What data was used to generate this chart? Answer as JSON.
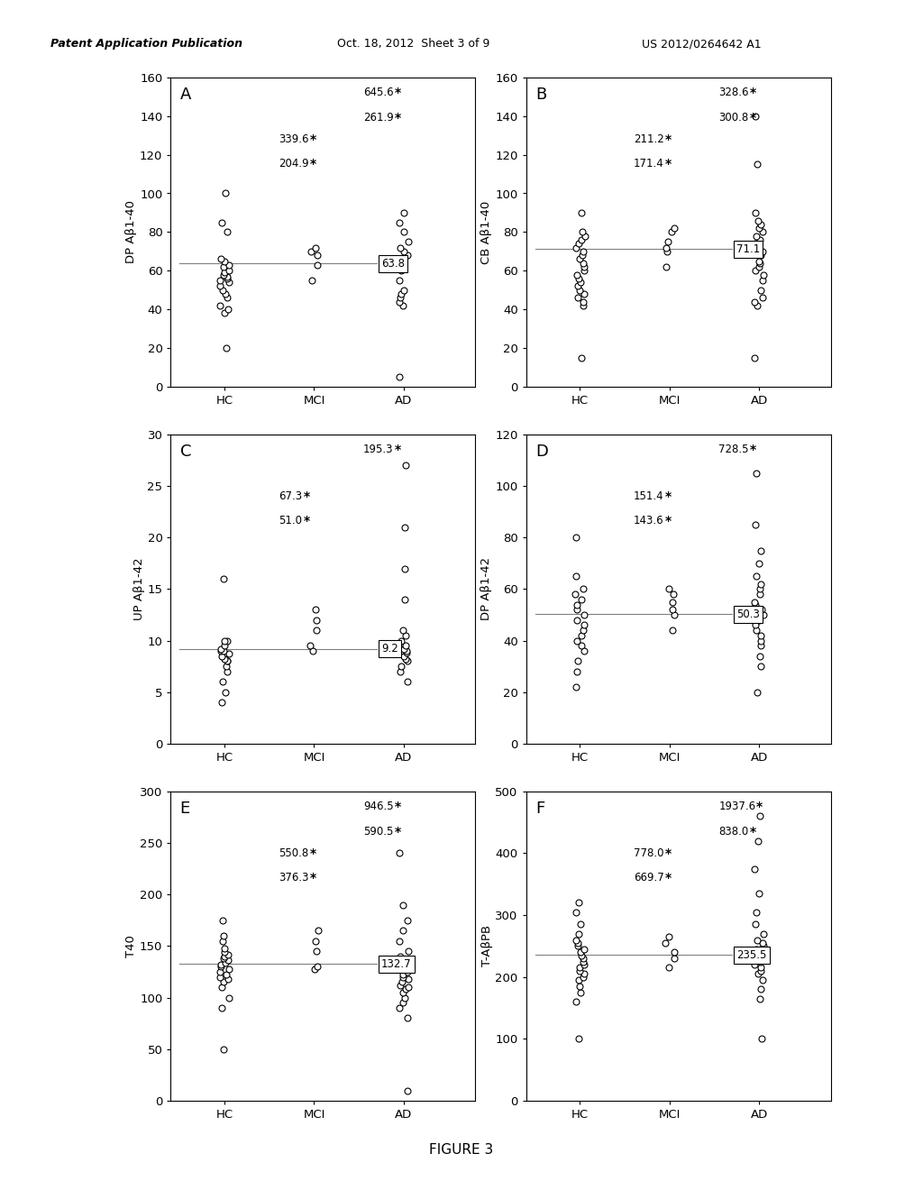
{
  "panels": [
    {
      "label": "A",
      "ylabel": "DP Aβ1-40",
      "ylim": [
        0,
        160
      ],
      "yticks": [
        0,
        20,
        40,
        60,
        80,
        100,
        120,
        140,
        160
      ],
      "median_line": 63.8,
      "median_label": "63.8",
      "ann_mci_1": "339.6",
      "ann_mci_2": "204.9",
      "ann_ad_1": "645.6",
      "ann_ad_2": "261.9",
      "hc_points": [
        20,
        38,
        40,
        42,
        46,
        48,
        50,
        52,
        54,
        55,
        56,
        57,
        58,
        59,
        60,
        62,
        63,
        65,
        66,
        80,
        85,
        100
      ],
      "mci_points": [
        55,
        63,
        68,
        70,
        72
      ],
      "ad_points": [
        5,
        42,
        44,
        46,
        48,
        50,
        55,
        60,
        65,
        68,
        70,
        72,
        75,
        80,
        85,
        90
      ]
    },
    {
      "label": "B",
      "ylabel": "CB Aβ1-40",
      "ylim": [
        0,
        160
      ],
      "yticks": [
        0,
        20,
        40,
        60,
        80,
        100,
        120,
        140,
        160
      ],
      "median_line": 71.1,
      "median_label": "71.1",
      "ann_mci_1": "211.2",
      "ann_mci_2": "171.4",
      "ann_ad_1": "328.6",
      "ann_ad_2": "300.8",
      "hc_points": [
        15,
        42,
        44,
        46,
        48,
        50,
        52,
        54,
        56,
        58,
        60,
        62,
        64,
        66,
        68,
        70,
        72,
        74,
        76,
        78,
        80,
        90
      ],
      "mci_points": [
        62,
        70,
        72,
        75,
        80,
        82
      ],
      "ad_points": [
        15,
        42,
        44,
        46,
        50,
        55,
        58,
        60,
        62,
        64,
        65,
        68,
        70,
        72,
        74,
        76,
        78,
        80,
        82,
        84,
        86,
        90,
        115,
        140
      ]
    },
    {
      "label": "C",
      "ylabel": "UP Aβ1-42",
      "ylim": [
        0,
        30
      ],
      "yticks": [
        0,
        5,
        10,
        15,
        20,
        25,
        30
      ],
      "median_line": 9.2,
      "median_label": "9.2",
      "ann_mci_1": "67.3",
      "ann_mci_2": "51.0",
      "ann_ad_1": "195.3",
      "ann_ad_2": null,
      "hc_points": [
        4,
        5,
        6,
        7,
        7.5,
        8,
        8,
        8.2,
        8.5,
        8.7,
        9,
        9,
        9.2,
        9.5,
        10,
        10,
        16
      ],
      "mci_points": [
        9,
        9.5,
        11,
        12,
        13
      ],
      "ad_points": [
        6,
        7,
        7.5,
        8,
        8.2,
        8.5,
        8.8,
        9,
        9.2,
        9.5,
        10,
        10.5,
        11,
        14,
        17,
        21,
        27
      ]
    },
    {
      "label": "D",
      "ylabel": "DP Aβ1-42",
      "ylim": [
        0,
        120
      ],
      "yticks": [
        0,
        20,
        40,
        60,
        80,
        100,
        120
      ],
      "median_line": 50.3,
      "median_label": "50.3",
      "ann_mci_1": "151.4",
      "ann_mci_2": "143.6",
      "ann_ad_1": "728.5",
      "ann_ad_2": null,
      "hc_points": [
        22,
        28,
        32,
        36,
        38,
        40,
        42,
        44,
        46,
        48,
        50,
        52,
        54,
        56,
        58,
        60,
        65,
        80
      ],
      "mci_points": [
        44,
        50,
        52,
        55,
        58,
        60
      ],
      "ad_points": [
        20,
        30,
        34,
        38,
        40,
        42,
        44,
        46,
        48,
        50,
        52,
        54,
        55,
        58,
        60,
        62,
        65,
        70,
        75,
        85,
        105
      ]
    },
    {
      "label": "E",
      "ylabel": "T40",
      "ylim": [
        0,
        300
      ],
      "yticks": [
        0,
        50,
        100,
        150,
        200,
        250,
        300
      ],
      "median_line": 132.7,
      "median_label": "132.7",
      "ann_mci_1": "550.8",
      "ann_mci_2": "376.3",
      "ann_ad_1": "946.5",
      "ann_ad_2": "590.5",
      "hc_points": [
        50,
        90,
        100,
        110,
        115,
        118,
        120,
        122,
        125,
        128,
        130,
        132,
        134,
        136,
        138,
        140,
        142,
        144,
        148,
        155,
        160,
        175
      ],
      "mci_points": [
        128,
        130,
        145,
        155,
        165
      ],
      "ad_points": [
        10,
        80,
        90,
        95,
        100,
        105,
        108,
        110,
        112,
        115,
        118,
        120,
        122,
        125,
        130,
        135,
        140,
        145,
        155,
        165,
        175,
        190,
        240
      ]
    },
    {
      "label": "F",
      "ylabel": "T-AβPB",
      "ylim": [
        0,
        500
      ],
      "yticks": [
        0,
        100,
        200,
        300,
        400,
        500
      ],
      "median_line": 235.5,
      "median_label": "235.5",
      "ann_mci_1": "778.0",
      "ann_mci_2": "669.7",
      "ann_ad_1": "1937.6",
      "ann_ad_2": "838.0",
      "hc_points": [
        100,
        160,
        175,
        185,
        195,
        200,
        205,
        210,
        215,
        220,
        225,
        230,
        235,
        240,
        245,
        250,
        255,
        260,
        270,
        285,
        305,
        320
      ],
      "mci_points": [
        215,
        230,
        240,
        255,
        265
      ],
      "ad_points": [
        100,
        165,
        180,
        195,
        205,
        210,
        215,
        220,
        225,
        230,
        235,
        240,
        245,
        250,
        255,
        260,
        270,
        285,
        305,
        335,
        375,
        420,
        460
      ]
    }
  ],
  "xtick_labels": [
    "HC",
    "MCI",
    "AD"
  ],
  "figure_label": "FIGURE 3",
  "header_left": "Patent Application Publication",
  "header_mid": "Oct. 18, 2012  Sheet 3 of 9",
  "header_right": "US 2012/0264642 A1"
}
